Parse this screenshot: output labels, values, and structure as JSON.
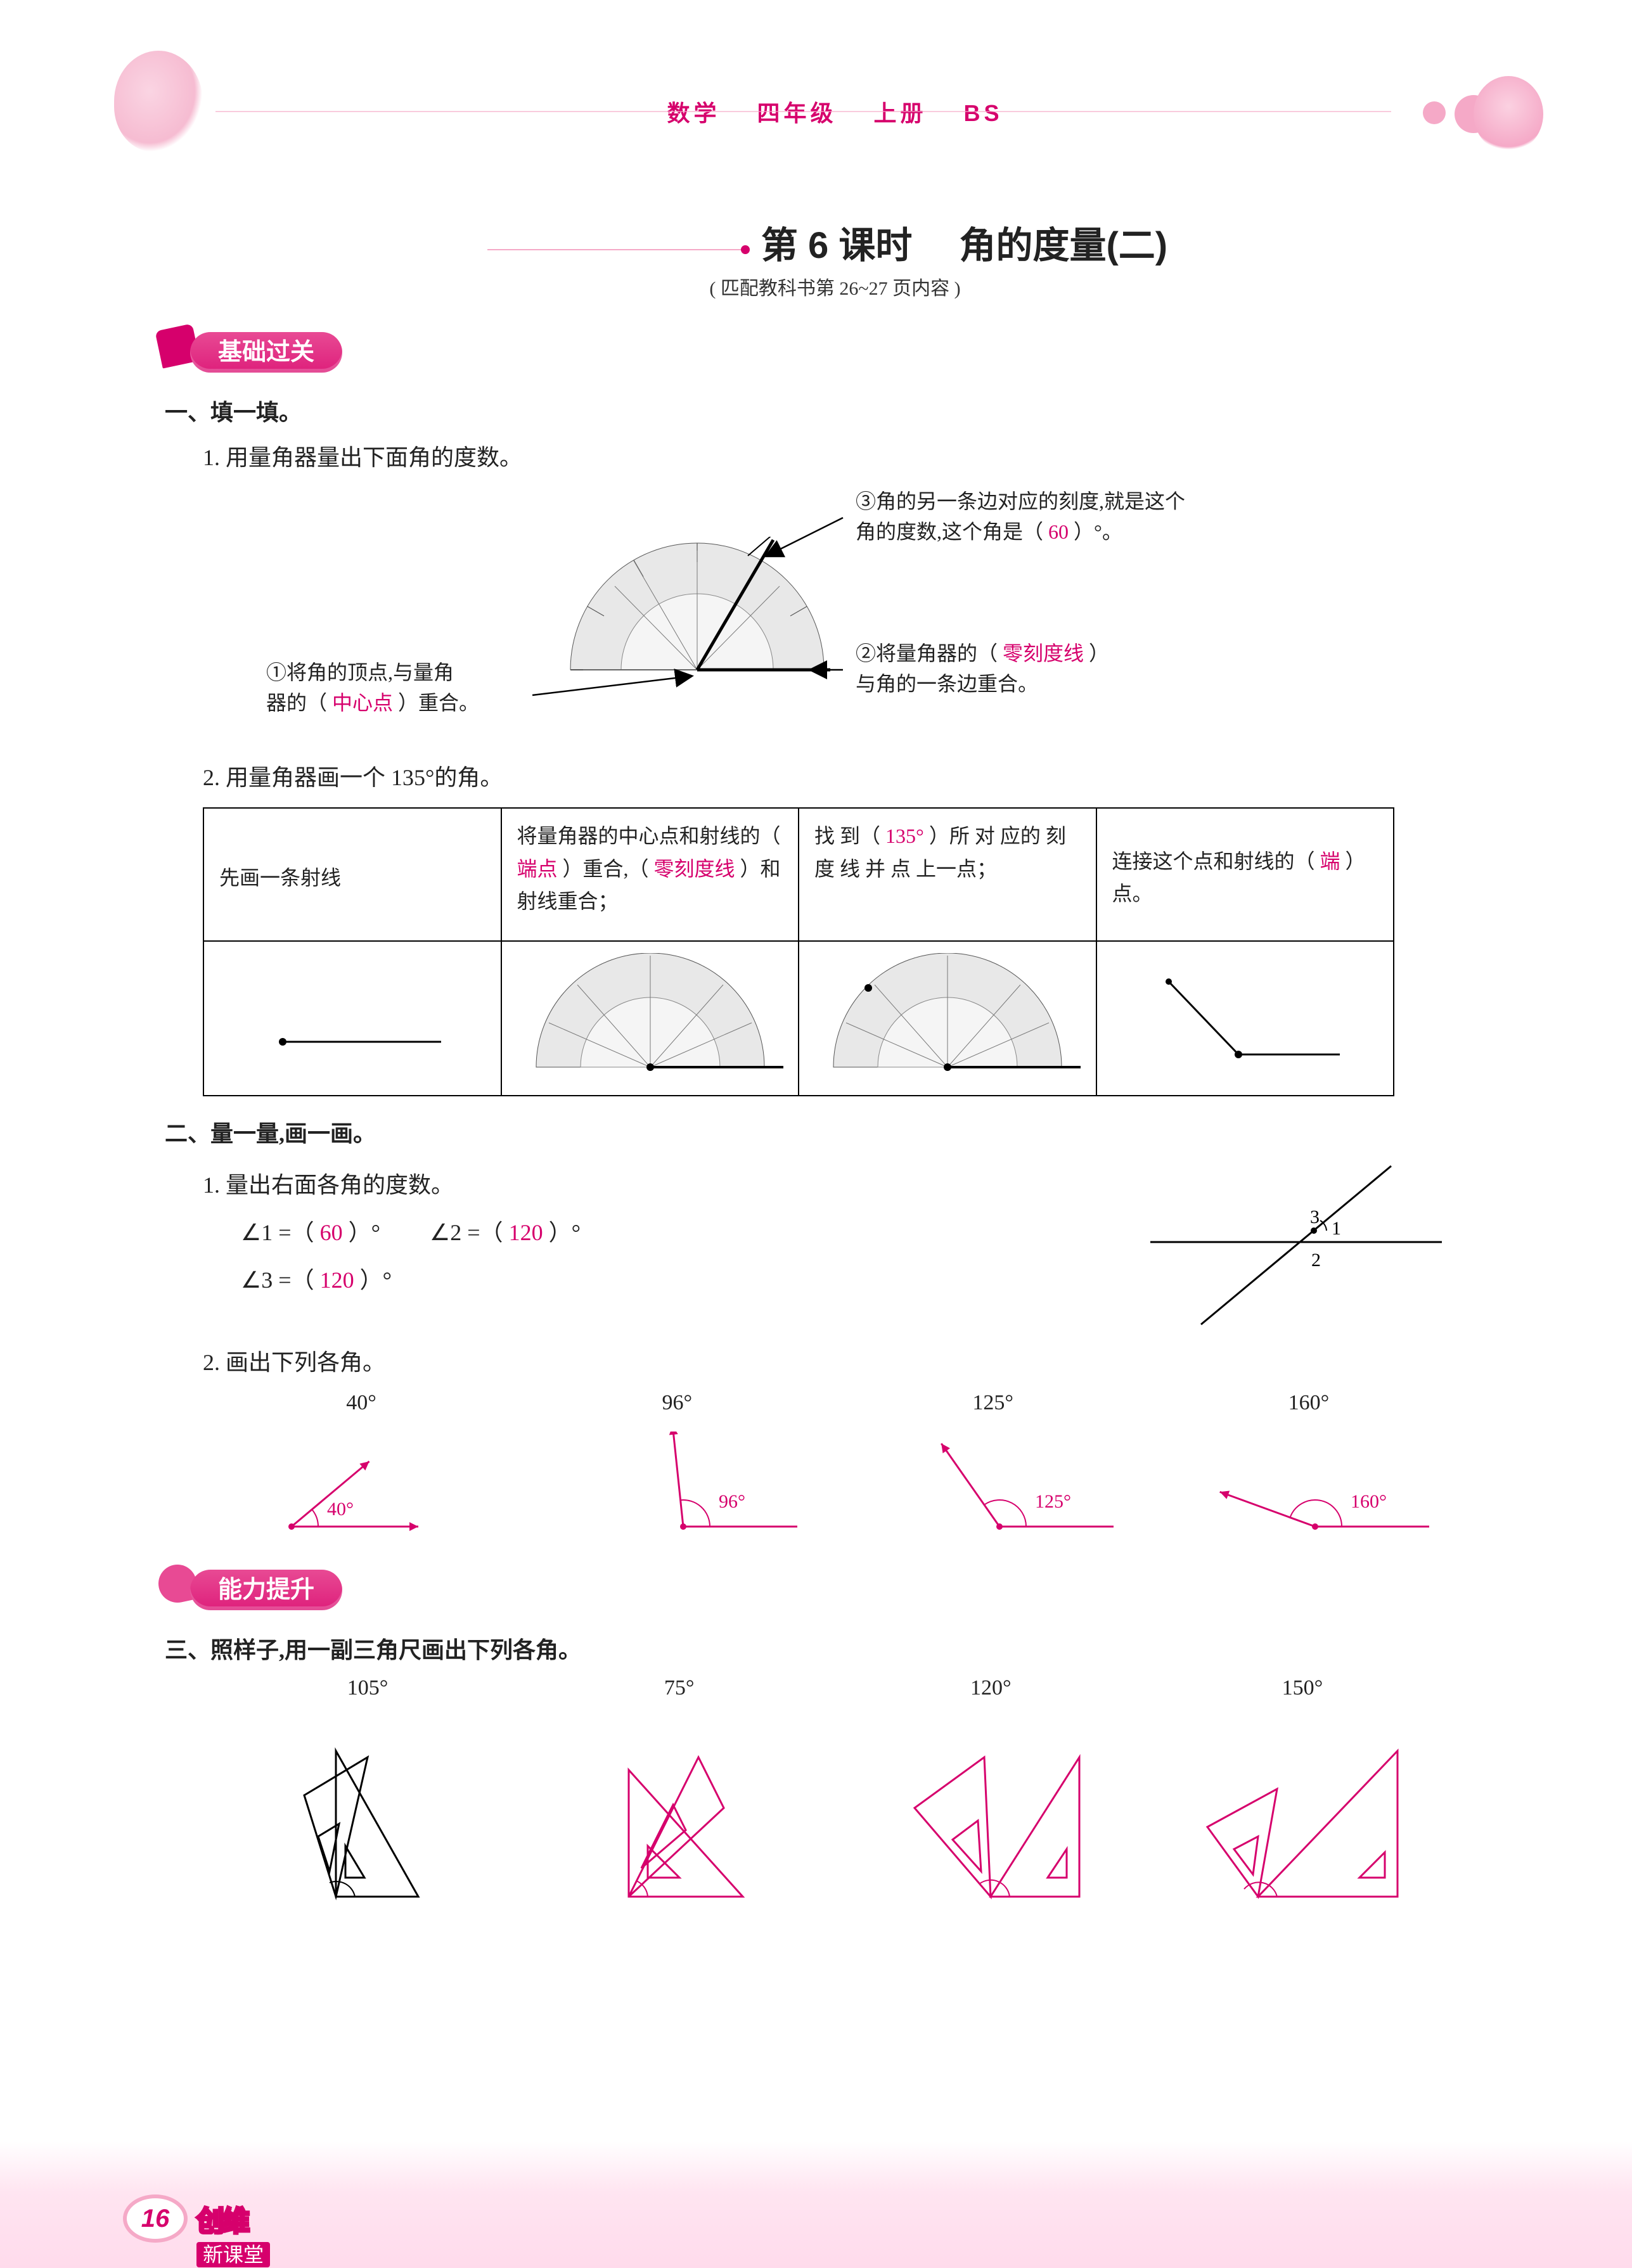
{
  "header": {
    "subject": "数学",
    "grade": "四年级",
    "volume": "上册",
    "edition": "BS"
  },
  "lesson": {
    "title_prefix": "第 6 课时",
    "title_main": "角的度量(二)",
    "match": "( 匹配教科书第 26~27 页内容 )"
  },
  "colors": {
    "accent": "#d6006c",
    "answer": "#d6006c",
    "pink_light": "#f5a9c7",
    "pink_bg": "#ffe5f1",
    "text": "#222222",
    "border": "#000000"
  },
  "section_a": {
    "badge": "基础过关",
    "h1": "一、填一填。",
    "q1": {
      "stem": "1. 用量角器量出下面角的度数。",
      "callout3_a": "③角的另一条边对应的刻度,就是这个",
      "callout3_b": "角的度数,这个角是（",
      "callout3_ans": "60",
      "callout3_c": "）°。",
      "callout1_a": "①将角的顶点,与量角",
      "callout1_b": "器的（",
      "callout1_ans": "中心点",
      "callout1_c": "）重合。",
      "callout2_a": "②将量角器的（",
      "callout2_ans": "零刻度线",
      "callout2_b": "）",
      "callout2_c": "与角的一条边重合。"
    },
    "q2": {
      "stem": "2. 用量角器画一个 135°的角。",
      "cells": [
        {
          "text": "先画一条射线"
        },
        {
          "text_parts": [
            "将量角器的中心点和射线的（",
            "端点",
            "）重合,（",
            "零刻度线",
            "）和射线重合；"
          ]
        },
        {
          "text_parts": [
            "找 到（",
            "135°",
            "）所 对 应的 刻 度 线 并 点 上一点；"
          ]
        },
        {
          "text_parts": [
            "连接这个点和射线的（",
            "端",
            "）点。"
          ]
        }
      ]
    },
    "h2": "二、量一量,画一画。",
    "q3": {
      "stem": "1. 量出右面各角的度数。",
      "a1_lhs": "∠1 =（",
      "a1_ans": "60",
      "a1_rhs": "）°",
      "a2_lhs": "∠2 =（",
      "a2_ans": "120",
      "a2_rhs": "）°",
      "a3_lhs": "∠3 =（",
      "a3_ans": "120",
      "a3_rhs": "）°"
    },
    "q4": {
      "stem": "2. 画出下列各角。",
      "angles": [
        40,
        96,
        125,
        160
      ],
      "angle_color": "#d6006c"
    }
  },
  "section_b": {
    "badge": "能力提升",
    "h3": "三、照样子,用一副三角尺画出下列各角。",
    "angles": [
      105,
      75,
      120,
      150
    ],
    "example_color": "#000000",
    "answer_color": "#d6006c"
  },
  "footer": {
    "page": "16",
    "brand_up": "创维",
    "brand_dn": "新课堂"
  }
}
